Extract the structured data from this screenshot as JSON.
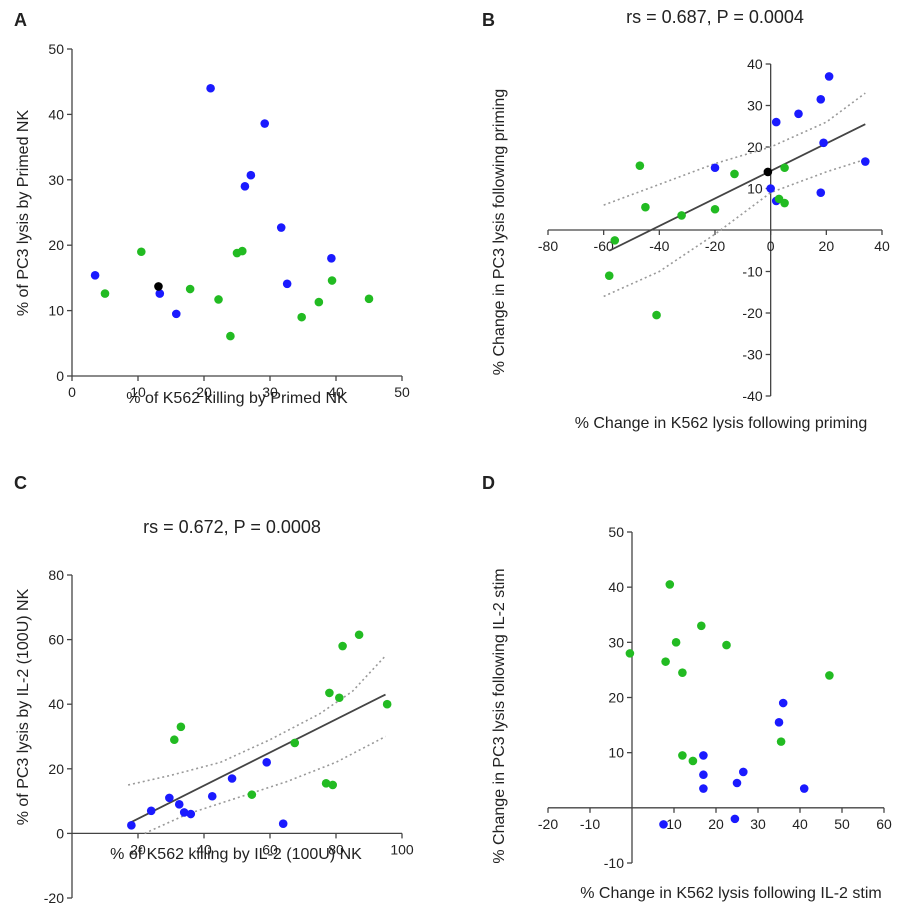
{
  "colors": {
    "blue": "#1a1aff",
    "green": "#22bb22",
    "black": "#000000",
    "axis": "#444444",
    "fit": "#444444",
    "ci": "#999999"
  },
  "chart_data": [
    {
      "type": "scatter",
      "panel_label": "A",
      "title": "",
      "xlabel": "% of K562 killing by Primed NK",
      "ylabel": "% of PC3 lysis by Primed NK",
      "xlim": [
        0,
        50
      ],
      "ylim": [
        0,
        50
      ],
      "xticks": [
        0,
        10,
        20,
        30,
        40,
        50
      ],
      "yticks": [
        0,
        10,
        20,
        30,
        40,
        50
      ],
      "grid": false,
      "series": [
        {
          "color": "blue",
          "points": [
            [
              3.5,
              15.4
            ],
            [
              13.3,
              12.6
            ],
            [
              15.8,
              9.5
            ],
            [
              21,
              44
            ],
            [
              26.2,
              29
            ],
            [
              27.1,
              30.7
            ],
            [
              29.2,
              38.6
            ],
            [
              31.7,
              22.7
            ],
            [
              32.6,
              14.1
            ],
            [
              39.3,
              18
            ]
          ]
        },
        {
          "color": "green",
          "points": [
            [
              5,
              12.6
            ],
            [
              10.5,
              19
            ],
            [
              17.9,
              13.3
            ],
            [
              22.2,
              11.7
            ],
            [
              24,
              6.1
            ],
            [
              25,
              18.8
            ],
            [
              25.8,
              19.1
            ],
            [
              34.8,
              9
            ],
            [
              37.4,
              11.3
            ],
            [
              39.4,
              14.6
            ],
            [
              45,
              11.8
            ]
          ]
        },
        {
          "color": "black",
          "points": [
            [
              13.1,
              13.7
            ]
          ]
        }
      ]
    },
    {
      "type": "scatter",
      "panel_label": "B",
      "title": "rs = 0.687,  P = 0.0004",
      "xlabel": "% Change in K562 lysis following priming",
      "ylabel": "% Change in PC3 lysis following priming",
      "xlim": [
        -80,
        40
      ],
      "ylim": [
        -40,
        40
      ],
      "xticks": [
        -80,
        -60,
        -40,
        -20,
        0,
        20,
        40
      ],
      "yticks": [
        -40,
        -30,
        -20,
        -10,
        10,
        20,
        30,
        40
      ],
      "axes_through_origin": true,
      "grid": false,
      "fit_line": [
        [
          -58,
          -5
        ],
        [
          34,
          25.5
        ]
      ],
      "ci_upper": [
        [
          -60,
          6
        ],
        [
          -40,
          11
        ],
        [
          -20,
          16
        ],
        [
          0,
          20
        ],
        [
          20,
          26
        ],
        [
          34,
          33
        ]
      ],
      "ci_lower": [
        [
          -60,
          -16
        ],
        [
          -40,
          -10
        ],
        [
          -20,
          -1
        ],
        [
          0,
          9
        ],
        [
          20,
          14
        ],
        [
          34,
          17
        ]
      ],
      "series": [
        {
          "color": "blue",
          "points": [
            [
              -20,
              15
            ],
            [
              2,
              7
            ],
            [
              2,
              26
            ],
            [
              0,
              10
            ],
            [
              10,
              28
            ],
            [
              18,
              31.5
            ],
            [
              19,
              21
            ],
            [
              18,
              9
            ],
            [
              21,
              37
            ],
            [
              34,
              16.5
            ]
          ]
        },
        {
          "color": "green",
          "points": [
            [
              -58,
              -11
            ],
            [
              -56,
              -2.5
            ],
            [
              -47,
              15.5
            ],
            [
              -45,
              5.5
            ],
            [
              -41,
              -20.5
            ],
            [
              -32,
              3.5
            ],
            [
              -20,
              5
            ],
            [
              -13,
              13.5
            ],
            [
              3,
              7.5
            ],
            [
              5,
              15
            ],
            [
              5,
              6.5
            ]
          ]
        },
        {
          "color": "black",
          "points": [
            [
              -1,
              14
            ]
          ]
        }
      ]
    },
    {
      "type": "scatter",
      "panel_label": "C",
      "title": "rs = 0.672,  P = 0.0008",
      "xlabel": "% of K562 killing by IL-2 (100U) NK",
      "ylabel": "% of PC3 lysis by IL-2 (100U) NK",
      "xlim": [
        0,
        100
      ],
      "ylim": [
        -20,
        80
      ],
      "xticks": [
        20,
        40,
        60,
        80,
        100
      ],
      "yticks": [
        -20,
        0,
        20,
        40,
        60,
        80
      ],
      "axes_through_origin": true,
      "grid": false,
      "fit_line": [
        [
          17,
          3
        ],
        [
          95,
          43
        ]
      ],
      "ci_upper": [
        [
          17,
          15
        ],
        [
          30,
          18
        ],
        [
          45,
          22
        ],
        [
          60,
          29
        ],
        [
          75,
          37
        ],
        [
          85,
          44
        ],
        [
          95,
          55
        ]
      ],
      "ci_lower": [
        [
          22,
          0
        ],
        [
          35,
          6
        ],
        [
          50,
          11
        ],
        [
          65,
          16
        ],
        [
          80,
          22
        ],
        [
          95,
          30
        ]
      ],
      "series": [
        {
          "color": "blue",
          "points": [
            [
              18,
              2.5
            ],
            [
              24,
              7
            ],
            [
              29.5,
              11
            ],
            [
              32.5,
              9
            ],
            [
              34,
              6.5
            ],
            [
              36,
              6
            ],
            [
              42.5,
              11.5
            ],
            [
              48.5,
              17
            ],
            [
              59,
              22
            ],
            [
              64,
              3
            ]
          ]
        },
        {
          "color": "green",
          "points": [
            [
              31,
              29
            ],
            [
              33,
              33
            ],
            [
              54.5,
              12
            ],
            [
              67.5,
              28
            ],
            [
              77,
              15.5
            ],
            [
              78,
              43.5
            ],
            [
              79,
              15
            ],
            [
              81,
              42
            ],
            [
              82,
              58
            ],
            [
              87,
              61.5
            ],
            [
              95.5,
              40
            ]
          ]
        }
      ]
    },
    {
      "type": "scatter",
      "panel_label": "D",
      "title": "",
      "xlabel": "% Change in K562 lysis following IL-2 stim",
      "ylabel": "% Change in PC3 lysis following IL-2 stim",
      "xlim": [
        -20,
        60
      ],
      "ylim": [
        -10,
        50
      ],
      "xticks": [
        -20,
        -10,
        10,
        20,
        30,
        40,
        50,
        60
      ],
      "yticks": [
        -10,
        10,
        20,
        30,
        40,
        50
      ],
      "axes_through_origin": true,
      "grid": false,
      "series": [
        {
          "color": "blue",
          "points": [
            [
              7.5,
              -3
            ],
            [
              17,
              9.5
            ],
            [
              17,
              6
            ],
            [
              17,
              3.5
            ],
            [
              24.5,
              -2
            ],
            [
              25,
              4.5
            ],
            [
              26.5,
              6.5
            ],
            [
              35,
              15.5
            ],
            [
              36,
              19
            ],
            [
              41,
              3.5
            ]
          ]
        },
        {
          "color": "green",
          "points": [
            [
              -0.5,
              28
            ],
            [
              8,
              26.5
            ],
            [
              9,
              40.5
            ],
            [
              10.5,
              30
            ],
            [
              12,
              24.5
            ],
            [
              12,
              9.5
            ],
            [
              14.5,
              8.5
            ],
            [
              16.5,
              33
            ],
            [
              22.5,
              29.5
            ],
            [
              35.5,
              12
            ],
            [
              47,
              24
            ]
          ]
        }
      ]
    }
  ]
}
